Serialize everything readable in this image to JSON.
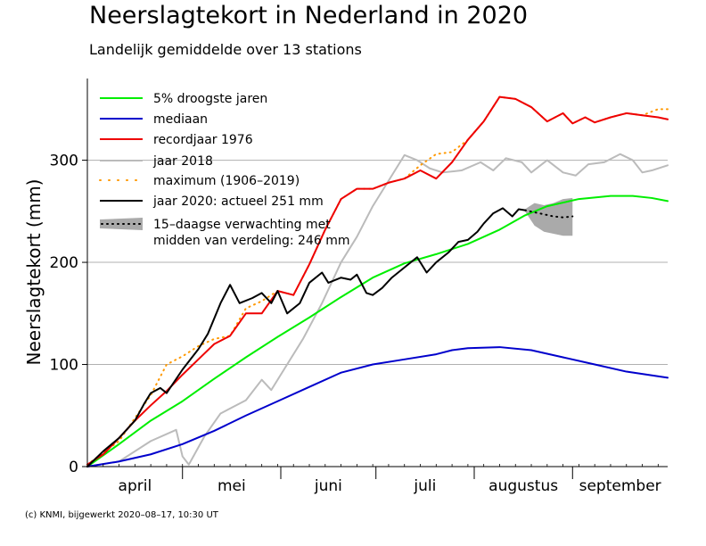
{
  "title": "Neerslagtekort in Nederland in 2020",
  "subtitle": "Landelijk gemiddelde over 13 stations",
  "footer": "(c) KNMI, bijgewerkt 2020–08–17, 10:30 UT",
  "chart_data": {
    "type": "line",
    "ylabel": "Neerslagtekort (mm)",
    "xlabel": "",
    "ylim": [
      0,
      380
    ],
    "yticks": [
      0,
      100,
      200,
      300
    ],
    "grid": "horizontal",
    "legend_position": "top-left",
    "x_unit": "day-of-year (1 april = 0, 1 okt = 183)",
    "xlim": [
      0,
      183
    ],
    "months": [
      {
        "label": "april",
        "start": 0,
        "end": 30
      },
      {
        "label": "mei",
        "start": 30,
        "end": 61
      },
      {
        "label": "juni",
        "start": 61,
        "end": 91
      },
      {
        "label": "juli",
        "start": 91,
        "end": 122
      },
      {
        "label": "augustus",
        "start": 122,
        "end": 153
      },
      {
        "label": "september",
        "start": 153,
        "end": 183
      }
    ],
    "series": [
      {
        "name": "5% droogste jaren",
        "color": "#00ee00",
        "style": "solid",
        "x": [
          0,
          10,
          20,
          30,
          40,
          50,
          60,
          70,
          80,
          90,
          100,
          110,
          120,
          130,
          138,
          145,
          155,
          165,
          172,
          178,
          183
        ],
        "y": [
          0,
          22,
          45,
          64,
          86,
          107,
          127,
          146,
          166,
          185,
          199,
          208,
          218,
          232,
          246,
          255,
          262,
          265,
          265,
          263,
          260
        ]
      },
      {
        "name": "mediaan",
        "color": "#0000cc",
        "style": "solid",
        "x": [
          0,
          10,
          20,
          30,
          40,
          50,
          60,
          70,
          80,
          90,
          100,
          110,
          115,
          120,
          130,
          140,
          150,
          160,
          170,
          183
        ],
        "y": [
          0,
          5,
          12,
          22,
          35,
          50,
          64,
          78,
          92,
          100,
          105,
          110,
          114,
          116,
          117,
          114,
          107,
          100,
          93,
          87
        ]
      },
      {
        "name": "recordjaar 1976",
        "color": "#ee0000",
        "style": "solid",
        "x": [
          0,
          5,
          10,
          15,
          20,
          25,
          30,
          35,
          40,
          45,
          50,
          55,
          60,
          65,
          70,
          75,
          80,
          85,
          90,
          95,
          100,
          105,
          110,
          115,
          120,
          125,
          130,
          135,
          140,
          145,
          150,
          153,
          157,
          160,
          165,
          170,
          175,
          180,
          183
        ],
        "y": [
          2,
          12,
          28,
          45,
          60,
          74,
          90,
          105,
          120,
          128,
          150,
          150,
          172,
          168,
          198,
          232,
          262,
          272,
          272,
          278,
          282,
          290,
          282,
          298,
          320,
          338,
          362,
          360,
          352,
          338,
          346,
          336,
          342,
          337,
          342,
          346,
          344,
          342,
          340
        ]
      },
      {
        "name": "jaar 2018",
        "color": "#bbbbbb",
        "style": "solid",
        "x": [
          0,
          10,
          20,
          28,
          30,
          32,
          37,
          42,
          50,
          55,
          58,
          63,
          68,
          74,
          80,
          85,
          90,
          95,
          100,
          104,
          108,
          112,
          118,
          124,
          128,
          132,
          137,
          140,
          145,
          150,
          154,
          158,
          163,
          168,
          172,
          175,
          178,
          183
        ],
        "y": [
          0,
          5,
          25,
          36,
          10,
          2,
          30,
          52,
          65,
          85,
          75,
          100,
          125,
          160,
          200,
          225,
          255,
          280,
          305,
          300,
          292,
          288,
          290,
          298,
          290,
          302,
          298,
          288,
          300,
          288,
          285,
          296,
          298,
          306,
          300,
          288,
          290,
          295
        ]
      },
      {
        "name": "maximum (1906–2019)",
        "color": "#ff9900",
        "style": "dotted",
        "x": [
          0,
          10,
          20,
          25,
          30,
          35,
          40,
          45,
          50,
          55,
          60,
          65,
          70,
          75,
          80,
          85,
          90,
          95,
          100,
          105,
          110,
          115,
          120,
          125,
          130,
          135,
          140,
          145,
          150,
          153,
          157,
          160,
          165,
          170,
          175,
          180,
          183
        ],
        "y": [
          2,
          25,
          70,
          100,
          108,
          118,
          125,
          128,
          155,
          162,
          172,
          168,
          198,
          232,
          262,
          272,
          272,
          278,
          282,
          295,
          306,
          308,
          320,
          338,
          362,
          360,
          352,
          338,
          346,
          336,
          342,
          337,
          342,
          346,
          344,
          350,
          350
        ]
      },
      {
        "name": "jaar 2020: actueel 251 mm",
        "color": "#000000",
        "style": "solid",
        "x": [
          0,
          5,
          10,
          15,
          18,
          20,
          23,
          25,
          30,
          35,
          38,
          42,
          45,
          48,
          52,
          55,
          58,
          60,
          63,
          67,
          70,
          74,
          76,
          80,
          83,
          85,
          88,
          90,
          93,
          96,
          100,
          104,
          107,
          110,
          114,
          117,
          120,
          123,
          125,
          128,
          131,
          134,
          136,
          138
        ],
        "y": [
          0,
          15,
          28,
          45,
          62,
          72,
          77,
          72,
          95,
          115,
          130,
          160,
          178,
          160,
          165,
          170,
          160,
          172,
          150,
          160,
          180,
          190,
          180,
          185,
          183,
          188,
          170,
          168,
          175,
          185,
          195,
          205,
          190,
          200,
          210,
          220,
          222,
          230,
          238,
          248,
          253,
          245,
          252,
          251
        ]
      },
      {
        "name": "15–daagse verwachting met midden van verdeling: 246 mm",
        "color": "#000000",
        "style": "dotted",
        "band_color": "#aaaaaa",
        "x": [
          138,
          141,
          144,
          147,
          150,
          153
        ],
        "y": [
          251,
          249,
          247,
          245,
          244,
          245
        ],
        "low": [
          250,
          236,
          230,
          228,
          226,
          226
        ],
        "high": [
          252,
          258,
          256,
          258,
          262,
          263
        ]
      }
    ],
    "legend_labels": [
      "5% droogste jaren",
      "mediaan",
      "recordjaar 1976",
      "jaar 2018",
      "maximum (1906–2019)",
      "jaar 2020: actueel 251 mm",
      "15–daagse verwachting met",
      "midden van verdeling: 246 mm"
    ]
  }
}
